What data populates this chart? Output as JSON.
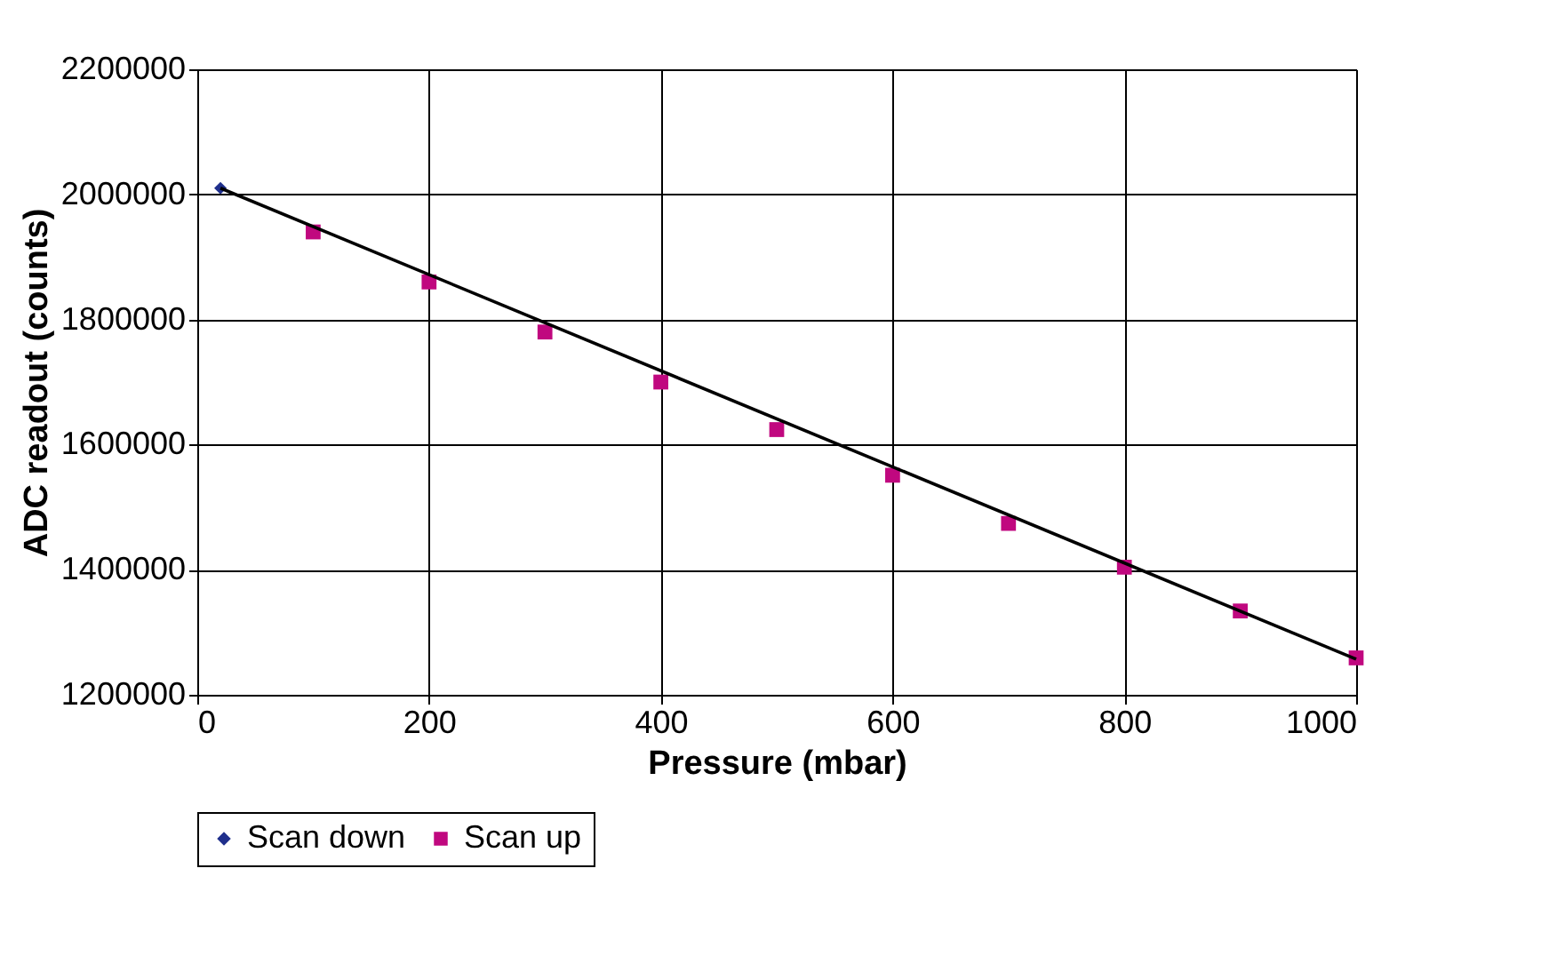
{
  "chart_data": {
    "type": "scatter",
    "xlabel": "Pressure (mbar)",
    "ylabel": "ADC readout (counts)",
    "xlim": [
      0,
      1000
    ],
    "xticks": [
      0,
      200,
      400,
      600,
      800,
      1000
    ],
    "ylim": [
      1200000,
      2200000
    ],
    "yticks": [
      1200000,
      1400000,
      1600000,
      1800000,
      2000000,
      2200000
    ],
    "grid": true,
    "legend": "bottom",
    "series": [
      {
        "name": "Scan down",
        "color": "#1f2f8c",
        "marker": "diamond",
        "x": [
          20
        ],
        "values": [
          2010000
        ]
      },
      {
        "name": "Scan up",
        "color": "#c0087f",
        "marker": "square",
        "x": [
          100,
          200,
          300,
          400,
          500,
          600,
          700,
          800,
          900,
          1000
        ],
        "values": [
          1940000,
          1860000,
          1780000,
          1700000,
          1624000,
          1551000,
          1474000,
          1404000,
          1334000,
          1259000
        ]
      },
      {
        "type": "line",
        "color": "#000000",
        "marker": "none",
        "x": [
          20,
          1000
        ],
        "values": [
          2010000,
          1257000
        ]
      }
    ]
  }
}
